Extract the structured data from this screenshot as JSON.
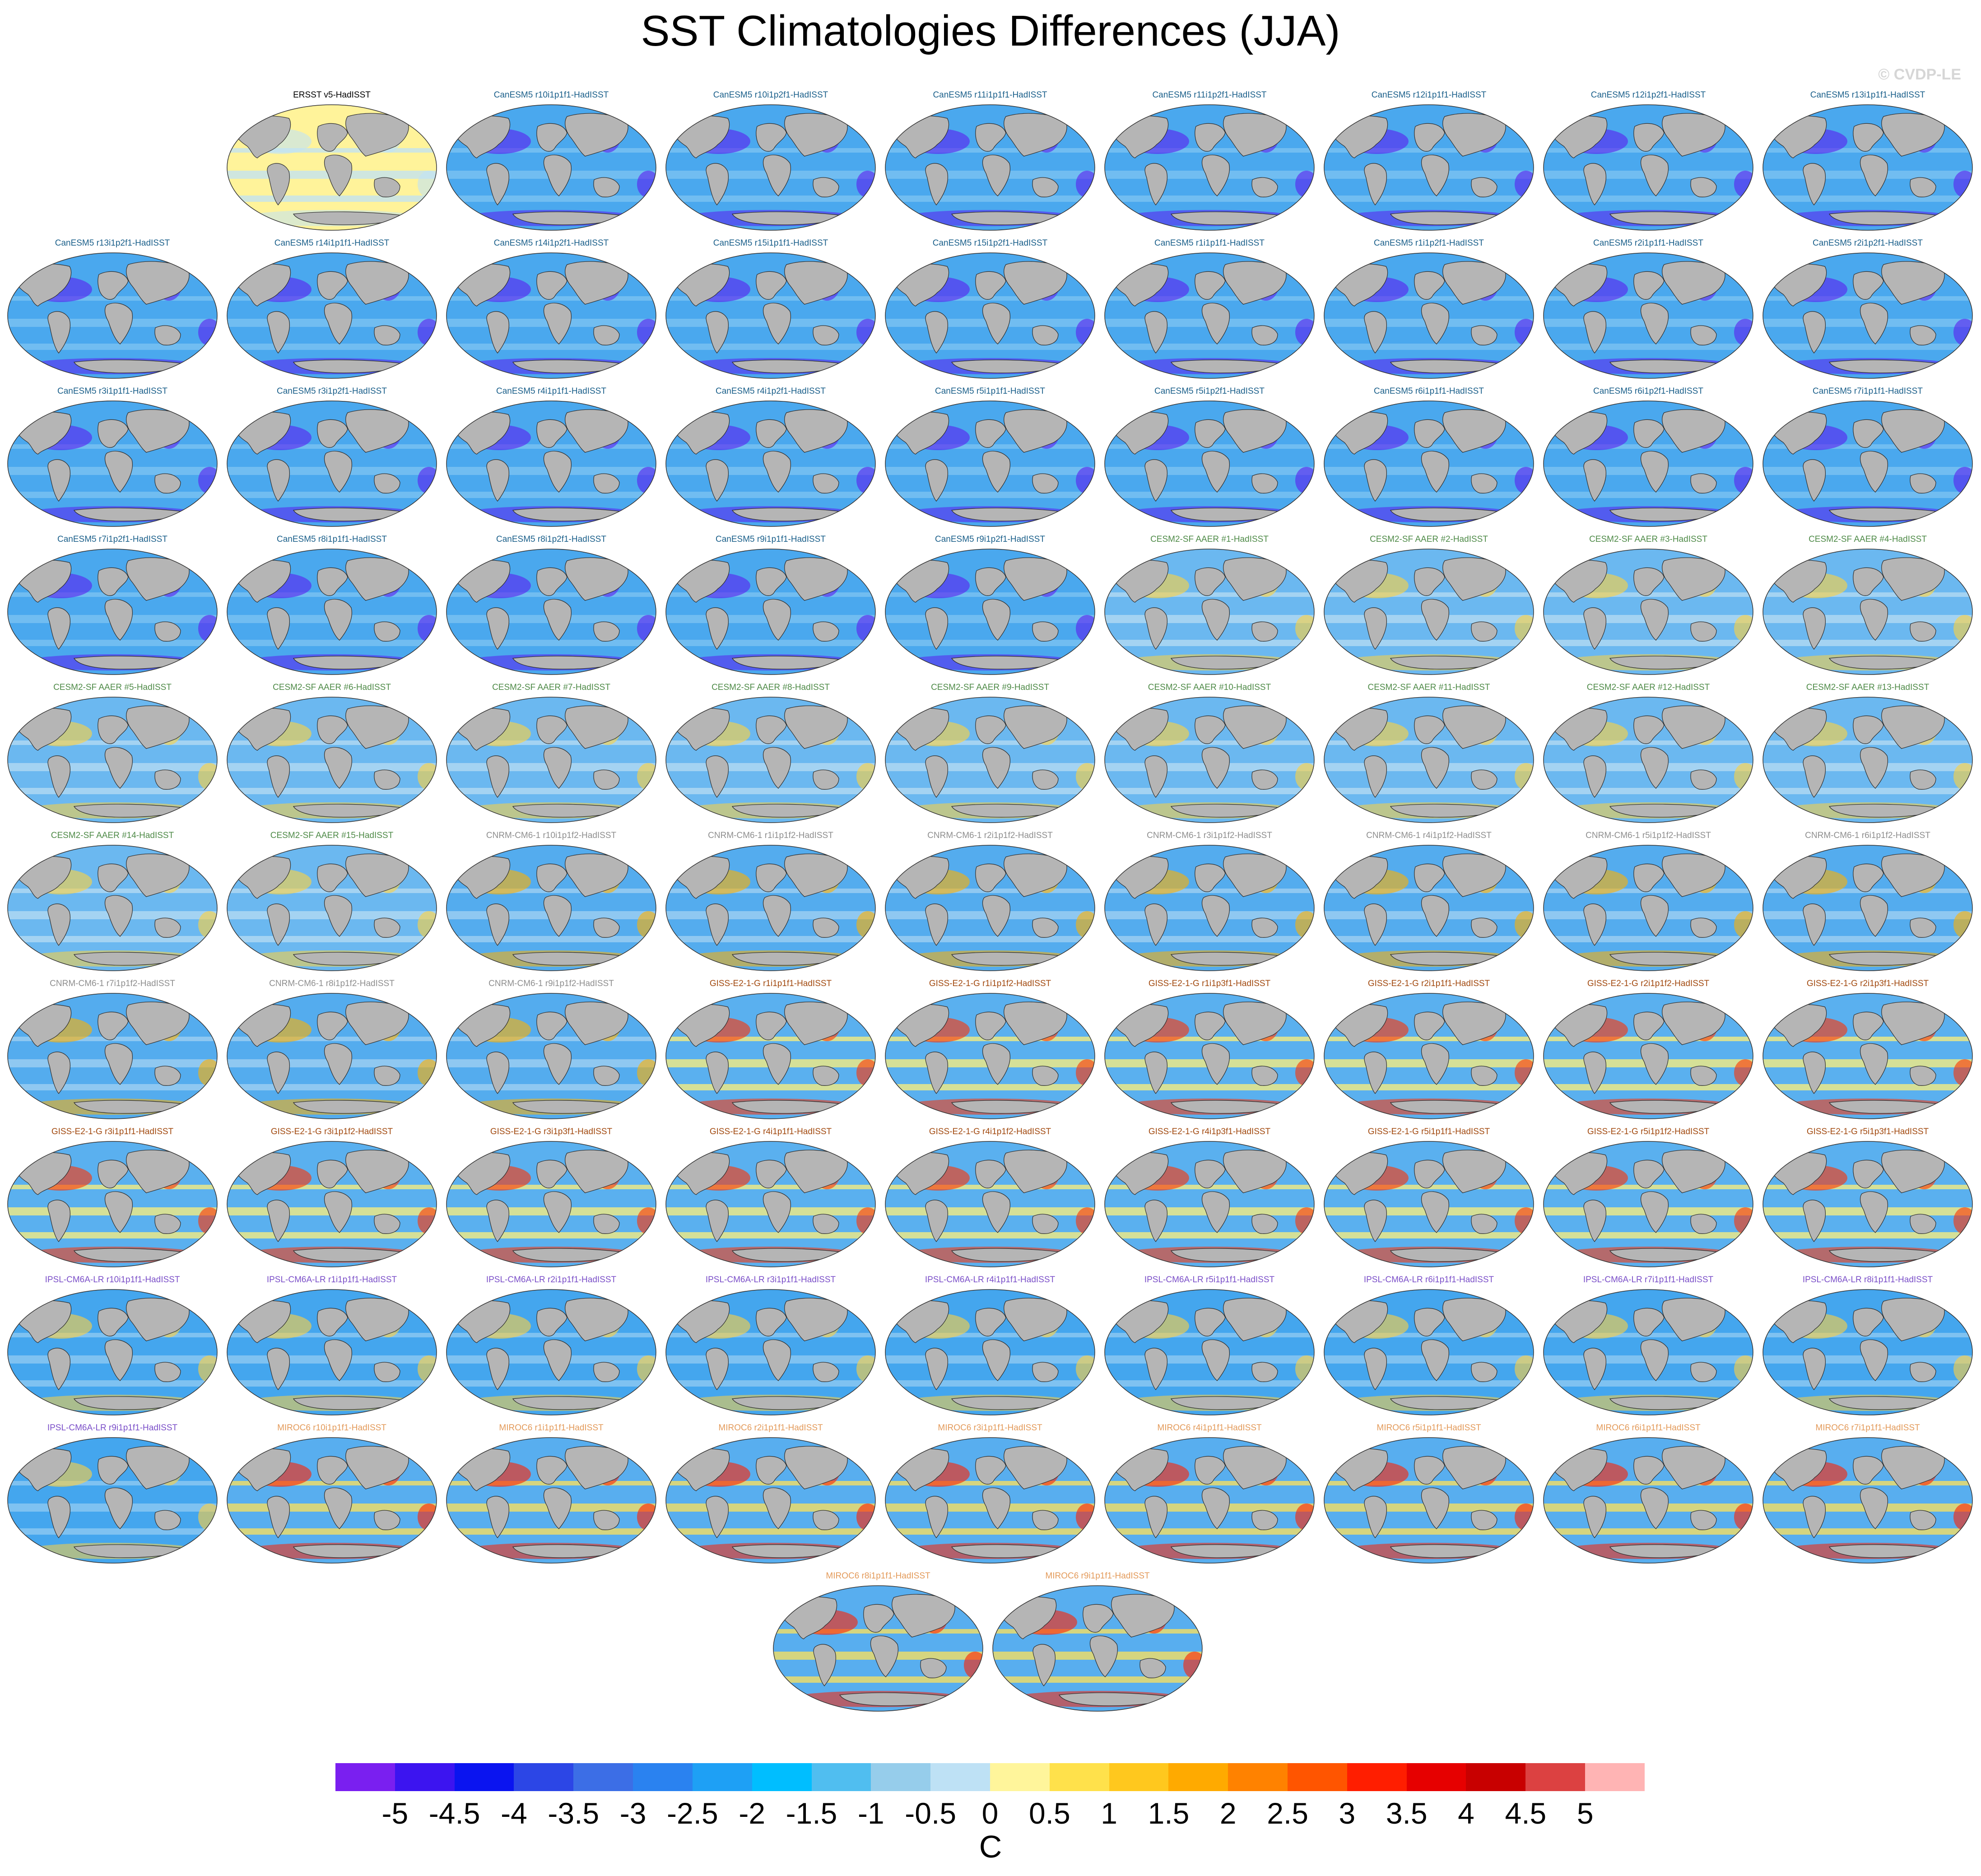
{
  "title": "SST Climatologies Differences (JJA)",
  "credit": "© CVDP-LE",
  "units": "C",
  "colorbar": {
    "tick_labels": [
      "-5",
      "-4.5",
      "-4",
      "-3.5",
      "-3",
      "-2.5",
      "-2",
      "-1.5",
      "-1",
      "-0.5",
      "0",
      "0.5",
      "1",
      "1.5",
      "2",
      "2.5",
      "3",
      "3.5",
      "4",
      "4.5",
      "5"
    ],
    "colors": [
      "#7a1ff0",
      "#3c14f0",
      "#0a14f0",
      "#2c46e6",
      "#3c6ee6",
      "#2a82f0",
      "#1ea0f5",
      "#00beff",
      "#50bef0",
      "#96cdeb",
      "#bee1f5",
      "#fff59b",
      "#ffe14b",
      "#ffc81e",
      "#ffaa00",
      "#ff8200",
      "#ff5500",
      "#ff1e00",
      "#e60000",
      "#c80000",
      "#dc4141",
      "#ffb4b4"
    ]
  },
  "groups": {
    "ERSST": {
      "label_color": "#000000",
      "ocean": "#fff39a",
      "secondary": "#bfe2f6",
      "accent": "#bfe2f6"
    },
    "CanESM5": {
      "label_color": "#1a5f8a",
      "ocean": "#4aa8ee",
      "secondary": "#7fc4f2",
      "accent": "#5a1ef0"
    },
    "CESM2": {
      "label_color": "#4e8a47",
      "ocean": "#6bb8f0",
      "secondary": "#b7dcf3",
      "accent": "#ffd23c"
    },
    "CNRM": {
      "label_color": "#8e8e8e",
      "ocean": "#54acee",
      "secondary": "#a3d2f2",
      "accent": "#ffb000"
    },
    "GISS": {
      "label_color": "#a24a10",
      "ocean": "#5ab0ef",
      "secondary": "#fff07a",
      "accent": "#ff3200"
    },
    "IPSL": {
      "label_color": "#7a4ec8",
      "ocean": "#44a6ee",
      "secondary": "#93cbf1",
      "accent": "#ffd040"
    },
    "MIROC6": {
      "label_color": "#e39a5a",
      "ocean": "#58aeef",
      "secondary": "#ffe15a",
      "accent": "#ff2000"
    }
  },
  "panels": [
    {
      "label": "ERSST v5-HadISST",
      "group": "ERSST"
    },
    {
      "label": "CanESM5 r10i1p1f1-HadISST",
      "group": "CanESM5"
    },
    {
      "label": "CanESM5 r10i1p2f1-HadISST",
      "group": "CanESM5"
    },
    {
      "label": "CanESM5 r11i1p1f1-HadISST",
      "group": "CanESM5"
    },
    {
      "label": "CanESM5 r11i1p2f1-HadISST",
      "group": "CanESM5"
    },
    {
      "label": "CanESM5 r12i1p1f1-HadISST",
      "group": "CanESM5"
    },
    {
      "label": "CanESM5 r12i1p2f1-HadISST",
      "group": "CanESM5"
    },
    {
      "label": "CanESM5 r13i1p1f1-HadISST",
      "group": "CanESM5"
    },
    {
      "label": "CanESM5 r13i1p2f1-HadISST",
      "group": "CanESM5"
    },
    {
      "label": "CanESM5 r14i1p1f1-HadISST",
      "group": "CanESM5"
    },
    {
      "label": "CanESM5 r14i1p2f1-HadISST",
      "group": "CanESM5"
    },
    {
      "label": "CanESM5 r15i1p1f1-HadISST",
      "group": "CanESM5"
    },
    {
      "label": "CanESM5 r15i1p2f1-HadISST",
      "group": "CanESM5"
    },
    {
      "label": "CanESM5 r1i1p1f1-HadISST",
      "group": "CanESM5"
    },
    {
      "label": "CanESM5 r1i1p2f1-HadISST",
      "group": "CanESM5"
    },
    {
      "label": "CanESM5 r2i1p1f1-HadISST",
      "group": "CanESM5"
    },
    {
      "label": "CanESM5 r2i1p2f1-HadISST",
      "group": "CanESM5"
    },
    {
      "label": "CanESM5 r3i1p1f1-HadISST",
      "group": "CanESM5"
    },
    {
      "label": "CanESM5 r3i1p2f1-HadISST",
      "group": "CanESM5"
    },
    {
      "label": "CanESM5 r4i1p1f1-HadISST",
      "group": "CanESM5"
    },
    {
      "label": "CanESM5 r4i1p2f1-HadISST",
      "group": "CanESM5"
    },
    {
      "label": "CanESM5 r5i1p1f1-HadISST",
      "group": "CanESM5"
    },
    {
      "label": "CanESM5 r5i1p2f1-HadISST",
      "group": "CanESM5"
    },
    {
      "label": "CanESM5 r6i1p1f1-HadISST",
      "group": "CanESM5"
    },
    {
      "label": "CanESM5 r6i1p2f1-HadISST",
      "group": "CanESM5"
    },
    {
      "label": "CanESM5 r7i1p1f1-HadISST",
      "group": "CanESM5"
    },
    {
      "label": "CanESM5 r7i1p2f1-HadISST",
      "group": "CanESM5"
    },
    {
      "label": "CanESM5 r8i1p1f1-HadISST",
      "group": "CanESM5"
    },
    {
      "label": "CanESM5 r8i1p2f1-HadISST",
      "group": "CanESM5"
    },
    {
      "label": "CanESM5 r9i1p1f1-HadISST",
      "group": "CanESM5"
    },
    {
      "label": "CanESM5 r9i1p2f1-HadISST",
      "group": "CanESM5"
    },
    {
      "label": "CESM2-SF AAER #1-HadISST",
      "group": "CESM2"
    },
    {
      "label": "CESM2-SF AAER #2-HadISST",
      "group": "CESM2"
    },
    {
      "label": "CESM2-SF AAER #3-HadISST",
      "group": "CESM2"
    },
    {
      "label": "CESM2-SF AAER #4-HadISST",
      "group": "CESM2"
    },
    {
      "label": "CESM2-SF AAER #5-HadISST",
      "group": "CESM2"
    },
    {
      "label": "CESM2-SF AAER #6-HadISST",
      "group": "CESM2"
    },
    {
      "label": "CESM2-SF AAER #7-HadISST",
      "group": "CESM2"
    },
    {
      "label": "CESM2-SF AAER #8-HadISST",
      "group": "CESM2"
    },
    {
      "label": "CESM2-SF AAER #9-HadISST",
      "group": "CESM2"
    },
    {
      "label": "CESM2-SF AAER #10-HadISST",
      "group": "CESM2"
    },
    {
      "label": "CESM2-SF AAER #11-HadISST",
      "group": "CESM2"
    },
    {
      "label": "CESM2-SF AAER #12-HadISST",
      "group": "CESM2"
    },
    {
      "label": "CESM2-SF AAER #13-HadISST",
      "group": "CESM2"
    },
    {
      "label": "CESM2-SF AAER #14-HadISST",
      "group": "CESM2"
    },
    {
      "label": "CESM2-SF AAER #15-HadISST",
      "group": "CESM2"
    },
    {
      "label": "CNRM-CM6-1 r10i1p1f2-HadISST",
      "group": "CNRM"
    },
    {
      "label": "CNRM-CM6-1 r1i1p1f2-HadISST",
      "group": "CNRM"
    },
    {
      "label": "CNRM-CM6-1 r2i1p1f2-HadISST",
      "group": "CNRM"
    },
    {
      "label": "CNRM-CM6-1 r3i1p1f2-HadISST",
      "group": "CNRM"
    },
    {
      "label": "CNRM-CM6-1 r4i1p1f2-HadISST",
      "group": "CNRM"
    },
    {
      "label": "CNRM-CM6-1 r5i1p1f2-HadISST",
      "group": "CNRM"
    },
    {
      "label": "CNRM-CM6-1 r6i1p1f2-HadISST",
      "group": "CNRM"
    },
    {
      "label": "CNRM-CM6-1 r7i1p1f2-HadISST",
      "group": "CNRM"
    },
    {
      "label": "CNRM-CM6-1 r8i1p1f2-HadISST",
      "group": "CNRM"
    },
    {
      "label": "CNRM-CM6-1 r9i1p1f2-HadISST",
      "group": "CNRM"
    },
    {
      "label": "GISS-E2-1-G r1i1p1f1-HadISST",
      "group": "GISS"
    },
    {
      "label": "GISS-E2-1-G r1i1p1f2-HadISST",
      "group": "GISS"
    },
    {
      "label": "GISS-E2-1-G r1i1p3f1-HadISST",
      "group": "GISS"
    },
    {
      "label": "GISS-E2-1-G r2i1p1f1-HadISST",
      "group": "GISS"
    },
    {
      "label": "GISS-E2-1-G r2i1p1f2-HadISST",
      "group": "GISS"
    },
    {
      "label": "GISS-E2-1-G r2i1p3f1-HadISST",
      "group": "GISS"
    },
    {
      "label": "GISS-E2-1-G r3i1p1f1-HadISST",
      "group": "GISS"
    },
    {
      "label": "GISS-E2-1-G r3i1p1f2-HadISST",
      "group": "GISS"
    },
    {
      "label": "GISS-E2-1-G r3i1p3f1-HadISST",
      "group": "GISS"
    },
    {
      "label": "GISS-E2-1-G r4i1p1f1-HadISST",
      "group": "GISS"
    },
    {
      "label": "GISS-E2-1-G r4i1p1f2-HadISST",
      "group": "GISS"
    },
    {
      "label": "GISS-E2-1-G r4i1p3f1-HadISST",
      "group": "GISS"
    },
    {
      "label": "GISS-E2-1-G r5i1p1f1-HadISST",
      "group": "GISS"
    },
    {
      "label": "GISS-E2-1-G r5i1p1f2-HadISST",
      "group": "GISS"
    },
    {
      "label": "GISS-E2-1-G r5i1p3f1-HadISST",
      "group": "GISS"
    },
    {
      "label": "IPSL-CM6A-LR r10i1p1f1-HadISST",
      "group": "IPSL"
    },
    {
      "label": "IPSL-CM6A-LR r1i1p1f1-HadISST",
      "group": "IPSL"
    },
    {
      "label": "IPSL-CM6A-LR r2i1p1f1-HadISST",
      "group": "IPSL"
    },
    {
      "label": "IPSL-CM6A-LR r3i1p1f1-HadISST",
      "group": "IPSL"
    },
    {
      "label": "IPSL-CM6A-LR r4i1p1f1-HadISST",
      "group": "IPSL"
    },
    {
      "label": "IPSL-CM6A-LR r5i1p1f1-HadISST",
      "group": "IPSL"
    },
    {
      "label": "IPSL-CM6A-LR r6i1p1f1-HadISST",
      "group": "IPSL"
    },
    {
      "label": "IPSL-CM6A-LR r7i1p1f1-HadISST",
      "group": "IPSL"
    },
    {
      "label": "IPSL-CM6A-LR r8i1p1f1-HadISST",
      "group": "IPSL"
    },
    {
      "label": "IPSL-CM6A-LR r9i1p1f1-HadISST",
      "group": "IPSL"
    },
    {
      "label": "MIROC6 r10i1p1f1-HadISST",
      "group": "MIROC6"
    },
    {
      "label": "MIROC6 r1i1p1f1-HadISST",
      "group": "MIROC6"
    },
    {
      "label": "MIROC6 r2i1p1f1-HadISST",
      "group": "MIROC6"
    },
    {
      "label": "MIROC6 r3i1p1f1-HadISST",
      "group": "MIROC6"
    },
    {
      "label": "MIROC6 r4i1p1f1-HadISST",
      "group": "MIROC6"
    },
    {
      "label": "MIROC6 r5i1p1f1-HadISST",
      "group": "MIROC6"
    },
    {
      "label": "MIROC6 r6i1p1f1-HadISST",
      "group": "MIROC6"
    },
    {
      "label": "MIROC6 r7i1p1f1-HadISST",
      "group": "MIROC6"
    },
    {
      "label": "MIROC6 r8i1p1f1-HadISST",
      "group": "MIROC6"
    },
    {
      "label": "MIROC6 r9i1p1f1-HadISST",
      "group": "MIROC6"
    }
  ]
}
